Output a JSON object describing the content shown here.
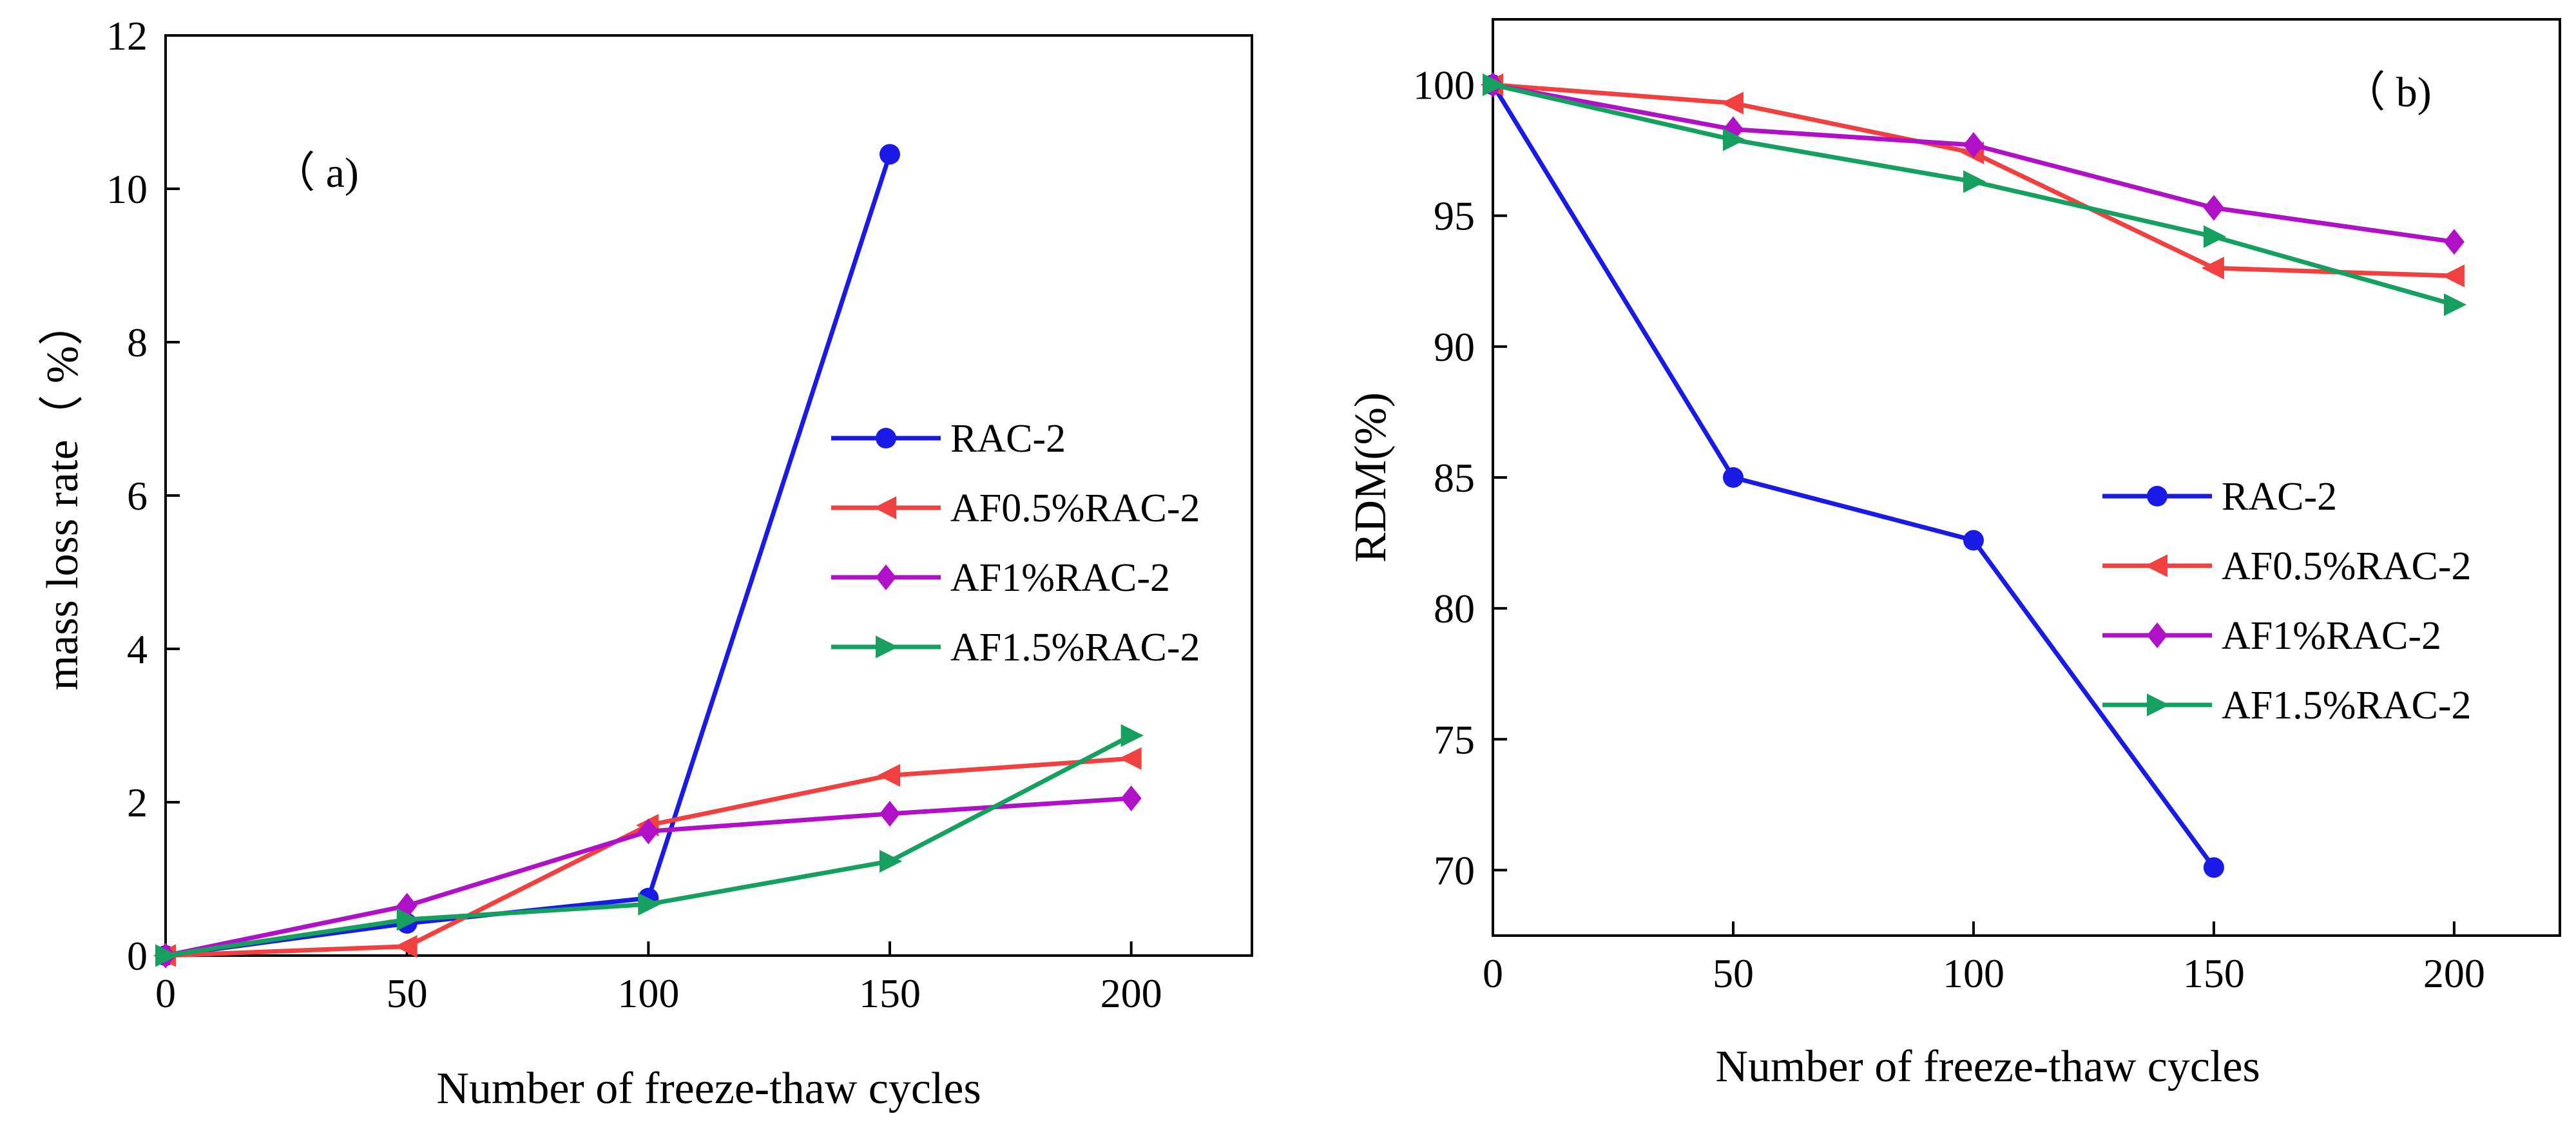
{
  "figure": {
    "description_labels": [
      "(a)",
      "(b)"
    ]
  },
  "chart_data": [
    {
      "type": "line",
      "panel_label": "（ a)",
      "title": "",
      "xlabel": "Number of freeze-thaw cycles",
      "ylabel": "mass loss rate（ %）",
      "xlim": [
        0,
        225
      ],
      "ylim": [
        0,
        12
      ],
      "xticks": [
        0,
        50,
        100,
        150,
        200
      ],
      "yticks": [
        0,
        2,
        4,
        6,
        8,
        10,
        12
      ],
      "grid": false,
      "legend_position": "center-right",
      "series": [
        {
          "name": "RAC-2",
          "marker": "circle",
          "color": "#1a1ae6",
          "x": [
            0,
            50,
            100,
            150
          ],
          "values": [
            0,
            0.42,
            0.75,
            10.45
          ]
        },
        {
          "name": "AF0.5%RAC-2",
          "marker": "triangle-left",
          "color": "#f04040",
          "x": [
            0,
            50,
            100,
            150,
            200
          ],
          "values": [
            0,
            0.12,
            1.7,
            2.35,
            2.57
          ]
        },
        {
          "name": "AF1%RAC-2",
          "marker": "diamond",
          "color": "#b010c8",
          "x": [
            0,
            50,
            100,
            150,
            200
          ],
          "values": [
            0,
            0.65,
            1.62,
            1.85,
            2.05
          ]
        },
        {
          "name": "AF1.5%RAC-2",
          "marker": "triangle-right",
          "color": "#16a060",
          "x": [
            0,
            50,
            100,
            150,
            200
          ],
          "values": [
            0,
            0.47,
            0.67,
            1.23,
            2.87
          ]
        }
      ]
    },
    {
      "type": "line",
      "panel_label": "（ b)",
      "title": "",
      "xlabel": "Number of freeze-thaw cycles",
      "ylabel": "RDM(%)",
      "xlim": [
        0,
        222
      ],
      "ylim": [
        67.5,
        102.5
      ],
      "xticks": [
        0,
        50,
        100,
        150,
        200
      ],
      "yticks": [
        70,
        75,
        80,
        85,
        90,
        95,
        100
      ],
      "grid": false,
      "legend_position": "center-right",
      "series": [
        {
          "name": "RAC-2",
          "marker": "circle",
          "color": "#1a1ae6",
          "x": [
            0,
            50,
            100,
            150
          ],
          "values": [
            100,
            85.0,
            82.6,
            70.1
          ]
        },
        {
          "name": "AF0.5%RAC-2",
          "marker": "triangle-left",
          "color": "#f04040",
          "x": [
            0,
            50,
            100,
            150,
            200
          ],
          "values": [
            100,
            99.3,
            97.4,
            93.0,
            92.7
          ]
        },
        {
          "name": "AF1%RAC-2",
          "marker": "diamond",
          "color": "#b010c8",
          "x": [
            0,
            50,
            100,
            150,
            200
          ],
          "values": [
            100,
            98.3,
            97.7,
            95.3,
            94.0
          ]
        },
        {
          "name": "AF1.5%RAC-2",
          "marker": "triangle-right",
          "color": "#16a060",
          "x": [
            0,
            50,
            100,
            150,
            200
          ],
          "values": [
            100,
            97.9,
            96.3,
            94.2,
            91.6
          ]
        }
      ]
    }
  ]
}
